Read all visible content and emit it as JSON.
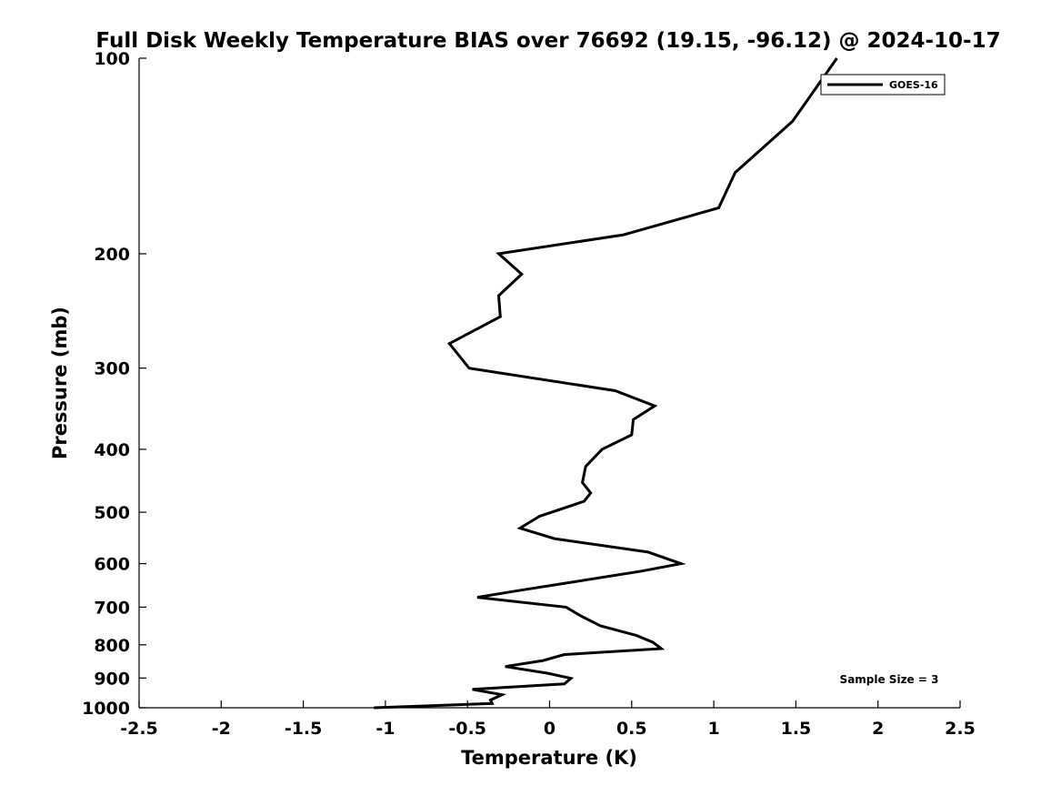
{
  "chart_data": {
    "type": "line",
    "title": "Full Disk Weekly Temperature BIAS over 76692 (19.15, -96.12) @ 2024-10-17",
    "xlabel": "Temperature (K)",
    "ylabel": "Pressure (mb)",
    "xlim": [
      -2.5,
      2.5
    ],
    "ylim": [
      1000,
      100
    ],
    "yscale": "log",
    "yreverse": true,
    "xticks": [
      -2.5,
      -2,
      -1.5,
      -1,
      -0.5,
      0,
      0.5,
      1,
      1.5,
      2,
      2.5
    ],
    "xtick_labels": [
      "-2.5",
      "-2",
      "-1.5",
      "-1",
      "-0.5",
      "0",
      "0.5",
      "1",
      "1.5",
      "2",
      "2.5"
    ],
    "yticks": [
      100,
      200,
      300,
      400,
      500,
      600,
      700,
      800,
      900,
      1000
    ],
    "ytick_labels": [
      "100",
      "200",
      "300",
      "400",
      "500",
      "600",
      "700",
      "800",
      "900",
      "1000"
    ],
    "grid": false,
    "legend_position": "top-right",
    "series": [
      {
        "name": "GOES-16",
        "color": "#000000",
        "points": [
          [
            1.75,
            100
          ],
          [
            1.48,
            125
          ],
          [
            1.13,
            150
          ],
          [
            1.03,
            170
          ],
          [
            0.45,
            187
          ],
          [
            -0.31,
            200
          ],
          [
            -0.17,
            215
          ],
          [
            -0.31,
            232
          ],
          [
            -0.3,
            250
          ],
          [
            -0.61,
            275
          ],
          [
            -0.49,
            300
          ],
          [
            0.4,
            325
          ],
          [
            0.64,
            343
          ],
          [
            0.51,
            360
          ],
          [
            0.5,
            380
          ],
          [
            0.32,
            400
          ],
          [
            0.22,
            425
          ],
          [
            0.2,
            450
          ],
          [
            0.25,
            467
          ],
          [
            0.21,
            481
          ],
          [
            -0.06,
            507
          ],
          [
            -0.18,
            529
          ],
          [
            0.03,
            549
          ],
          [
            0.6,
            576
          ],
          [
            0.8,
            600
          ],
          [
            0.56,
            616
          ],
          [
            0.13,
            641
          ],
          [
            -0.19,
            660
          ],
          [
            -0.44,
            676
          ],
          [
            0.1,
            700
          ],
          [
            0.19,
            722
          ],
          [
            0.31,
            748
          ],
          [
            0.53,
            774
          ],
          [
            0.63,
            793
          ],
          [
            0.68,
            811
          ],
          [
            0.09,
            828
          ],
          [
            -0.04,
            846
          ],
          [
            -0.27,
            864
          ],
          [
            -0.01,
            885
          ],
          [
            0.13,
            901
          ],
          [
            0.09,
            919
          ],
          [
            -0.47,
            937
          ],
          [
            -0.29,
            955
          ],
          [
            -0.36,
            973
          ],
          [
            -0.35,
            985
          ],
          [
            -1.07,
            1000
          ]
        ]
      }
    ],
    "annotations": [
      {
        "text": "Sample Size = 3",
        "position": "bottom-right"
      }
    ]
  }
}
